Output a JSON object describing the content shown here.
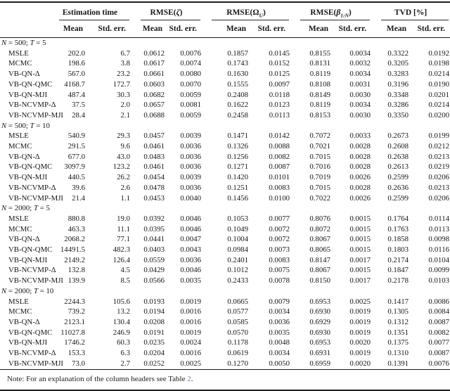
{
  "table": {
    "columns": [
      {
        "pre": "Estimation time",
        "it": "",
        "sub": "",
        "post": ""
      },
      {
        "pre": "RMSE(",
        "it": "ζ",
        "sub": "",
        "post": ")"
      },
      {
        "pre": "RMSE(Ω",
        "it": "",
        "sub": "U",
        "post": ")"
      },
      {
        "pre": "RMSE(",
        "it": "β",
        "sub": "1:N",
        "post": ")"
      },
      {
        "pre": "TVD [%]",
        "it": "",
        "sub": "",
        "post": ""
      }
    ],
    "sub_headers": [
      "Mean",
      "Std. err."
    ],
    "sections": [
      {
        "label": {
          "var1": "N",
          "mid": " = 500; ",
          "var2": "T",
          "end": " = 5"
        },
        "rows": [
          {
            "method": "MSLE",
            "values": [
              "202.0",
              "6.7",
              "0.0612",
              "0.0076",
              "0.1857",
              "0.0145",
              "0.8155",
              "0.0034",
              "0.3322",
              "0.0192"
            ]
          },
          {
            "method": "MCMC",
            "values": [
              "198.6",
              "3.8",
              "0.0617",
              "0.0074",
              "0.1743",
              "0.0152",
              "0.8131",
              "0.0032",
              "0.3205",
              "0.0198"
            ]
          },
          {
            "method": "VB-QN-Δ",
            "values": [
              "567.0",
              "23.2",
              "0.0661",
              "0.0080",
              "0.1630",
              "0.0125",
              "0.8119",
              "0.0034",
              "0.3283",
              "0.0214"
            ]
          },
          {
            "method": "VB-QN-QMC",
            "values": [
              "4168.7",
              "172.7",
              "0.0603",
              "0.0070",
              "0.1555",
              "0.0097",
              "0.8108",
              "0.0031",
              "0.3196",
              "0.0190"
            ]
          },
          {
            "method": "VB-QN-MJI",
            "values": [
              "487.4",
              "30.3",
              "0.0682",
              "0.0059",
              "0.2408",
              "0.0118",
              "0.8149",
              "0.0030",
              "0.3348",
              "0.0201"
            ]
          },
          {
            "method": "VB-NCVMP-Δ",
            "values": [
              "37.5",
              "2.0",
              "0.0657",
              "0.0081",
              "0.1622",
              "0.0123",
              "0.8119",
              "0.0034",
              "0.3286",
              "0.0214"
            ]
          },
          {
            "method": "VB-NCVMP-MJI",
            "values": [
              "28.4",
              "2.1",
              "0.0688",
              "0.0059",
              "0.2458",
              "0.0113",
              "0.8153",
              "0.0030",
              "0.3350",
              "0.0200"
            ]
          }
        ]
      },
      {
        "label": {
          "var1": "N",
          "mid": " = 500; ",
          "var2": "T",
          "end": " = 10"
        },
        "rows": [
          {
            "method": "MSLE",
            "values": [
              "540.9",
              "29.3",
              "0.0457",
              "0.0039",
              "0.1471",
              "0.0142",
              "0.7072",
              "0.0033",
              "0.2673",
              "0.0199"
            ]
          },
          {
            "method": "MCMC",
            "values": [
              "291.5",
              "9.6",
              "0.0461",
              "0.0036",
              "0.1326",
              "0.0088",
              "0.7021",
              "0.0028",
              "0.2608",
              "0.0212"
            ]
          },
          {
            "method": "VB-QN-Δ",
            "values": [
              "677.0",
              "43.0",
              "0.0483",
              "0.0036",
              "0.1256",
              "0.0082",
              "0.7015",
              "0.0028",
              "0.2638",
              "0.0213"
            ]
          },
          {
            "method": "VB-QN-QMC",
            "values": [
              "3097.9",
              "123.2",
              "0.0461",
              "0.0036",
              "0.1271",
              "0.0087",
              "0.7016",
              "0.0028",
              "0.2613",
              "0.0219"
            ]
          },
          {
            "method": "VB-QN-MJI",
            "values": [
              "440.5",
              "26.2",
              "0.0454",
              "0.0039",
              "0.1420",
              "0.0101",
              "0.7019",
              "0.0026",
              "0.2599",
              "0.0206"
            ]
          },
          {
            "method": "VB-NCVMP-Δ",
            "values": [
              "39.6",
              "2.6",
              "0.0478",
              "0.0036",
              "0.1251",
              "0.0083",
              "0.7015",
              "0.0028",
              "0.2636",
              "0.0213"
            ]
          },
          {
            "method": "VB-NCVMP-MJI",
            "values": [
              "21.4",
              "1.1",
              "0.0453",
              "0.0040",
              "0.1456",
              "0.0100",
              "0.7022",
              "0.0026",
              "0.2599",
              "0.0206"
            ]
          }
        ]
      },
      {
        "label": {
          "var1": "N",
          "mid": " = 2000; ",
          "var2": "T",
          "end": " = 5"
        },
        "rows": [
          {
            "method": "MSLE",
            "values": [
              "880.8",
              "19.0",
              "0.0392",
              "0.0046",
              "0.1053",
              "0.0077",
              "0.8076",
              "0.0015",
              "0.1764",
              "0.0114"
            ]
          },
          {
            "method": "MCMC",
            "values": [
              "463.3",
              "11.1",
              "0.0395",
              "0.0046",
              "0.1049",
              "0.0072",
              "0.8072",
              "0.0015",
              "0.1763",
              "0.0113"
            ]
          },
          {
            "method": "VB-QN-Δ",
            "values": [
              "2068.2",
              "77.1",
              "0.0441",
              "0.0047",
              "0.1004",
              "0.0072",
              "0.8067",
              "0.0015",
              "0.1858",
              "0.0098"
            ]
          },
          {
            "method": "VB-QN-QMC",
            "values": [
              "14491.5",
              "482.3",
              "0.0403",
              "0.0043",
              "0.0984",
              "0.0073",
              "0.8065",
              "0.0015",
              "0.1803",
              "0.0116"
            ]
          },
          {
            "method": "VB-QN-MJI",
            "values": [
              "2149.2",
              "126.4",
              "0.0559",
              "0.0036",
              "0.2401",
              "0.0083",
              "0.8147",
              "0.0017",
              "0.2174",
              "0.0104"
            ]
          },
          {
            "method": "VB-NCVMP-Δ",
            "values": [
              "132.8",
              "4.5",
              "0.0429",
              "0.0046",
              "0.1012",
              "0.0075",
              "0.8067",
              "0.0015",
              "0.1847",
              "0.0099"
            ]
          },
          {
            "method": "VB-NCVMP-MJI",
            "values": [
              "139.9",
              "8.5",
              "0.0566",
              "0.0035",
              "0.2433",
              "0.0078",
              "0.8150",
              "0.0017",
              "0.2178",
              "0.0103"
            ]
          }
        ]
      },
      {
        "label": {
          "var1": "N",
          "mid": " = 2000; ",
          "var2": "T",
          "end": " = 10"
        },
        "rows": [
          {
            "method": "MSLE",
            "values": [
              "2244.3",
              "105.6",
              "0.0193",
              "0.0019",
              "0.0665",
              "0.0079",
              "0.6953",
              "0.0025",
              "0.1417",
              "0.0086"
            ]
          },
          {
            "method": "MCMC",
            "values": [
              "739.2",
              "13.2",
              "0.0194",
              "0.0016",
              "0.0577",
              "0.0034",
              "0.6930",
              "0.0019",
              "0.1305",
              "0.0084"
            ]
          },
          {
            "method": "VB-QN-Δ",
            "values": [
              "2123.1",
              "130.4",
              "0.0208",
              "0.0016",
              "0.0585",
              "0.0036",
              "0.6929",
              "0.0019",
              "0.1312",
              "0.0087"
            ]
          },
          {
            "method": "VB-QN-QMC",
            "values": [
              "11027.8",
              "246.9",
              "0.0191",
              "0.0019",
              "0.0570",
              "0.0035",
              "0.6930",
              "0.0019",
              "0.1351",
              "0.0082"
            ]
          },
          {
            "method": "VB-QN-MJI",
            "values": [
              "1746.2",
              "60.3",
              "0.0235",
              "0.0024",
              "0.1178",
              "0.0048",
              "0.6953",
              "0.0020",
              "0.1375",
              "0.0077"
            ]
          },
          {
            "method": "VB-NCVMP-Δ",
            "values": [
              "153.3",
              "6.3",
              "0.0204",
              "0.0016",
              "0.0619",
              "0.0034",
              "0.6931",
              "0.0019",
              "0.1310",
              "0.0087"
            ]
          },
          {
            "method": "VB-NCVMP-MJI",
            "values": [
              "73.0",
              "2.7",
              "0.0252",
              "0.0025",
              "0.1270",
              "0.0050",
              "0.6959",
              "0.0020",
              "0.1391",
              "0.0076"
            ]
          }
        ]
      }
    ],
    "note": {
      "prefix": "Note: For an explanation of the column headers see Table ",
      "ref": "2",
      "suffix": "."
    }
  }
}
